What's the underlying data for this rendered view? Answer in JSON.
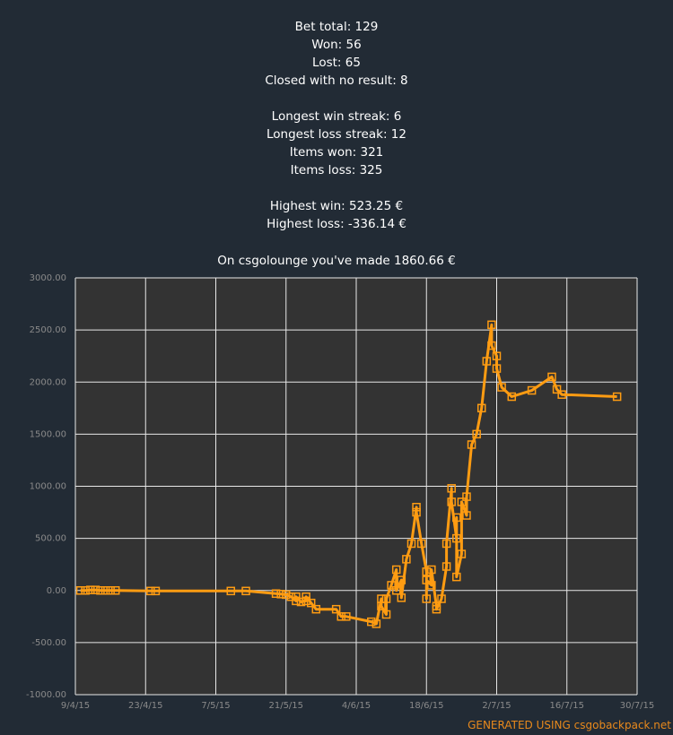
{
  "stats": {
    "bet_total": "Bet total: 129",
    "won": "Won: 56",
    "lost": "Lost: 65",
    "closed_no_result": "Closed with no result: 8",
    "longest_win_streak": "Longest win streak: 6",
    "longest_loss_streak": "Longest loss streak: 12",
    "items_won": "Items won: 321",
    "items_loss": "Items loss: 325",
    "highest_win": "Highest win: 523.25 €",
    "highest_loss": "Highest loss: -336.14 €"
  },
  "summary": "On csgolounge you've made 1860.66 €",
  "footer": "GENERATED USING csgobackpack.net",
  "colors": {
    "background": "#222b35",
    "plot_background": "#333333",
    "grid": "#e8e8e8",
    "line": "#ff9c12",
    "axis_text": "#8a8a8a"
  },
  "chart_data": {
    "type": "line",
    "title": "",
    "xlabel": "",
    "ylabel": "",
    "ylim": [
      -1000,
      3000
    ],
    "xlim": [
      "2015-04-09",
      "2015-07-30"
    ],
    "grid": true,
    "y_ticks": [
      "3000.00",
      "2500.00",
      "2000.00",
      "1500.00",
      "1000.00",
      "500.00",
      "0.00",
      "-500.00",
      "-1000.00"
    ],
    "x_ticks": [
      "9/4/15",
      "23/4/15",
      "7/5/15",
      "21/5/15",
      "4/6/15",
      "18/6/15",
      "2/7/15",
      "16/7/15",
      "30/7/15"
    ],
    "series": [
      {
        "points": [
          [
            "2015-04-10",
            0
          ],
          [
            "2015-04-11",
            0
          ],
          [
            "2015-04-12",
            5
          ],
          [
            "2015-04-13",
            5
          ],
          [
            "2015-04-14",
            0
          ],
          [
            "2015-04-15",
            0
          ],
          [
            "2015-04-16",
            0
          ],
          [
            "2015-04-17",
            0
          ],
          [
            "2015-04-24",
            -5
          ],
          [
            "2015-04-25",
            -5
          ],
          [
            "2015-05-10",
            -5
          ],
          [
            "2015-05-13",
            -5
          ],
          [
            "2015-05-19",
            -30
          ],
          [
            "2015-05-20",
            -35
          ],
          [
            "2015-05-21",
            -40
          ],
          [
            "2015-05-22",
            -60
          ],
          [
            "2015-05-23",
            -100
          ],
          [
            "2015-05-23",
            -60
          ],
          [
            "2015-05-24",
            -110
          ],
          [
            "2015-05-25",
            -100
          ],
          [
            "2015-05-25",
            -60
          ],
          [
            "2015-05-26",
            -120
          ],
          [
            "2015-05-27",
            -180
          ],
          [
            "2015-05-31",
            -180
          ],
          [
            "2015-06-01",
            -250
          ],
          [
            "2015-06-02",
            -250
          ],
          [
            "2015-06-07",
            -300
          ],
          [
            "2015-06-08",
            -320
          ],
          [
            "2015-06-09",
            -80
          ],
          [
            "2015-06-09",
            -150
          ],
          [
            "2015-06-10",
            -230
          ],
          [
            "2015-06-10",
            -80
          ],
          [
            "2015-06-11",
            50
          ],
          [
            "2015-06-12",
            200
          ],
          [
            "2015-06-12",
            0
          ],
          [
            "2015-06-13",
            100
          ],
          [
            "2015-06-13",
            -70
          ],
          [
            "2015-06-14",
            300
          ],
          [
            "2015-06-15",
            450
          ],
          [
            "2015-06-16",
            800
          ],
          [
            "2015-06-16",
            750
          ],
          [
            "2015-06-17",
            450
          ],
          [
            "2015-06-18",
            180
          ],
          [
            "2015-06-18",
            -80
          ],
          [
            "2015-06-18",
            100
          ],
          [
            "2015-06-19",
            50
          ],
          [
            "2015-06-19",
            200
          ],
          [
            "2015-06-20",
            -150
          ],
          [
            "2015-06-20",
            -180
          ],
          [
            "2015-06-21",
            -80
          ],
          [
            "2015-06-22",
            230
          ],
          [
            "2015-06-22",
            450
          ],
          [
            "2015-06-23",
            980
          ],
          [
            "2015-06-23",
            850
          ],
          [
            "2015-06-24",
            500
          ],
          [
            "2015-06-24",
            700
          ],
          [
            "2015-06-24",
            130
          ],
          [
            "2015-06-25",
            350
          ],
          [
            "2015-06-25",
            850
          ],
          [
            "2015-06-26",
            720
          ],
          [
            "2015-06-26",
            900
          ],
          [
            "2015-06-27",
            1400
          ],
          [
            "2015-06-28",
            1500
          ],
          [
            "2015-06-29",
            1750
          ],
          [
            "2015-06-30",
            2200
          ],
          [
            "2015-07-01",
            2550
          ],
          [
            "2015-07-01",
            2350
          ],
          [
            "2015-07-02",
            2250
          ],
          [
            "2015-07-02",
            2130
          ],
          [
            "2015-07-03",
            1950
          ],
          [
            "2015-07-05",
            1860
          ],
          [
            "2015-07-09",
            1920
          ],
          [
            "2015-07-13",
            2050
          ],
          [
            "2015-07-14",
            1930
          ],
          [
            "2015-07-15",
            1880
          ],
          [
            "2015-07-26",
            1860
          ]
        ]
      }
    ]
  }
}
